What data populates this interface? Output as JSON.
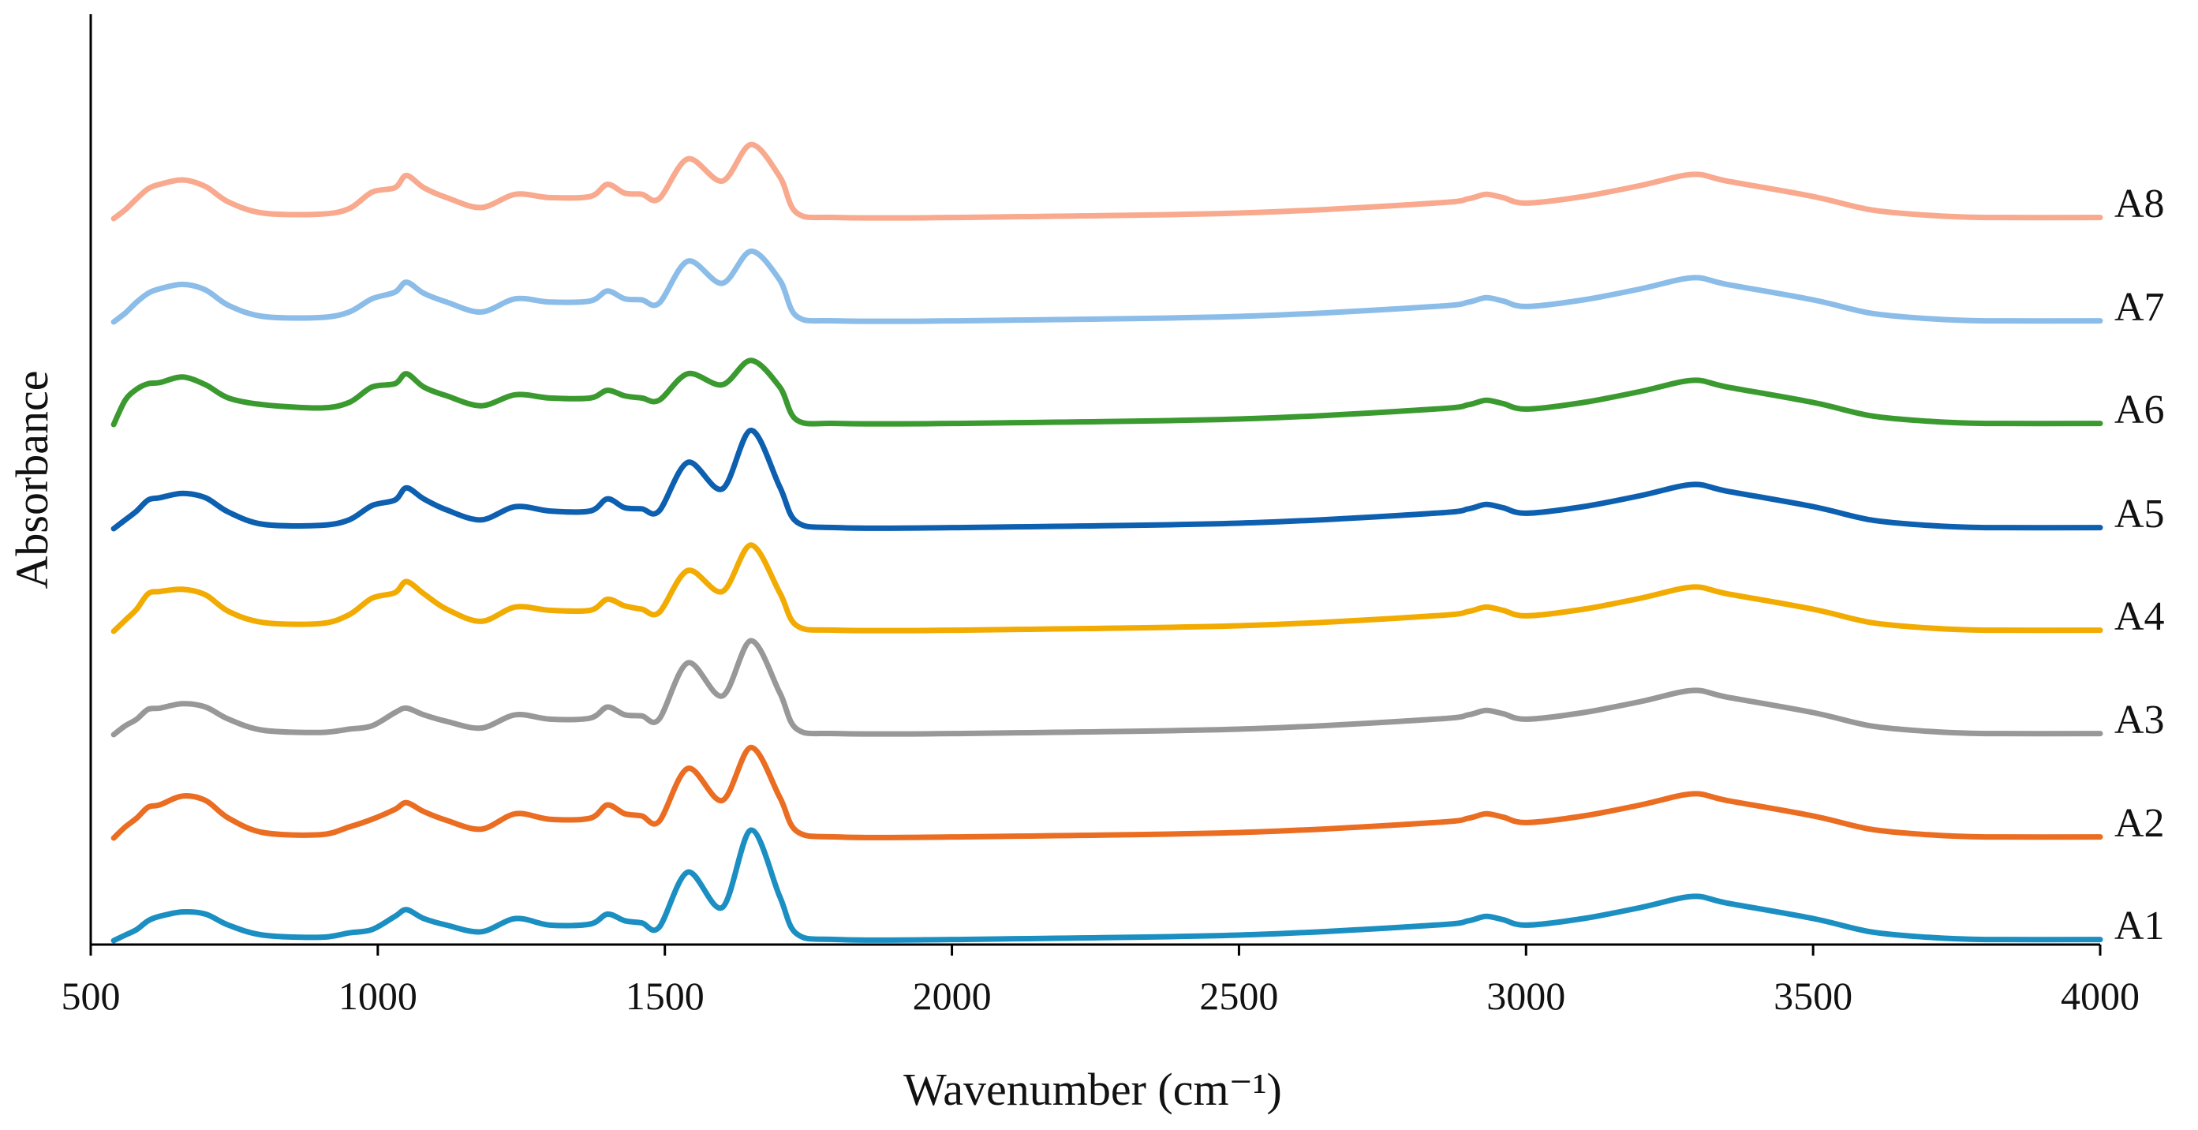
{
  "chart_data": {
    "type": "line",
    "title": "",
    "xlabel": "Wavenumber (cm⁻¹)",
    "ylabel": "Absorbance",
    "xlim": [
      500,
      4000
    ],
    "xticks": [
      500,
      1000,
      1500,
      2000,
      2500,
      3000,
      3500,
      4000
    ],
    "y_ticks_shown": false,
    "grid": false,
    "legend": "labels at right end of each trace",
    "note": "Offset (stacked) FTIR spectra; absorbance in arbitrary units relative to each trace's baseline.",
    "x": [
      540,
      560,
      580,
      600,
      620,
      660,
      700,
      740,
      800,
      900,
      950,
      990,
      1030,
      1050,
      1080,
      1120,
      1180,
      1240,
      1300,
      1370,
      1400,
      1430,
      1460,
      1490,
      1540,
      1600,
      1650,
      1700,
      1730,
      1800,
      2000,
      2500,
      2840,
      2900,
      2930,
      2960,
      3000,
      3100,
      3200,
      3290,
      3350,
      3500,
      3600,
      3700,
      3800,
      4000
    ],
    "series": [
      {
        "name": "A1",
        "color": "#1b8fc2",
        "values": [
          0.0,
          0.05,
          0.1,
          0.18,
          0.22,
          0.26,
          0.24,
          0.14,
          0.05,
          0.03,
          0.07,
          0.1,
          0.22,
          0.28,
          0.2,
          0.14,
          0.08,
          0.2,
          0.14,
          0.15,
          0.24,
          0.18,
          0.16,
          0.12,
          0.62,
          0.3,
          1.0,
          0.4,
          0.06,
          0.01,
          0.01,
          0.05,
          0.14,
          0.18,
          0.22,
          0.19,
          0.14,
          0.2,
          0.3,
          0.4,
          0.34,
          0.2,
          0.08,
          0.03,
          0.01,
          0.01
        ]
      },
      {
        "name": "A2",
        "color": "#ea6d22",
        "values": [
          0.0,
          0.1,
          0.18,
          0.28,
          0.3,
          0.38,
          0.34,
          0.18,
          0.05,
          0.03,
          0.1,
          0.17,
          0.26,
          0.32,
          0.24,
          0.16,
          0.08,
          0.22,
          0.17,
          0.18,
          0.3,
          0.22,
          0.2,
          0.15,
          0.63,
          0.34,
          0.82,
          0.37,
          0.06,
          0.01,
          0.01,
          0.05,
          0.14,
          0.18,
          0.22,
          0.19,
          0.14,
          0.2,
          0.3,
          0.4,
          0.34,
          0.2,
          0.08,
          0.03,
          0.01,
          0.01
        ]
      },
      {
        "name": "A3",
        "color": "#989898",
        "values": [
          0.0,
          0.08,
          0.14,
          0.23,
          0.24,
          0.28,
          0.25,
          0.14,
          0.04,
          0.02,
          0.05,
          0.08,
          0.2,
          0.24,
          0.18,
          0.12,
          0.06,
          0.18,
          0.14,
          0.15,
          0.25,
          0.18,
          0.17,
          0.14,
          0.65,
          0.35,
          0.85,
          0.38,
          0.05,
          0.01,
          0.01,
          0.05,
          0.14,
          0.18,
          0.22,
          0.19,
          0.14,
          0.2,
          0.3,
          0.4,
          0.34,
          0.2,
          0.08,
          0.03,
          0.01,
          0.01
        ]
      },
      {
        "name": "A4",
        "color": "#f2ab00",
        "values": [
          0.0,
          0.1,
          0.2,
          0.34,
          0.36,
          0.38,
          0.33,
          0.18,
          0.08,
          0.07,
          0.15,
          0.3,
          0.35,
          0.45,
          0.34,
          0.2,
          0.09,
          0.22,
          0.19,
          0.19,
          0.29,
          0.23,
          0.2,
          0.17,
          0.55,
          0.36,
          0.78,
          0.35,
          0.05,
          0.01,
          0.01,
          0.05,
          0.14,
          0.18,
          0.22,
          0.19,
          0.14,
          0.2,
          0.3,
          0.4,
          0.34,
          0.2,
          0.08,
          0.03,
          0.01,
          0.01
        ]
      },
      {
        "name": "A5",
        "color": "#0d5fb0",
        "values": [
          0.0,
          0.08,
          0.16,
          0.26,
          0.28,
          0.32,
          0.28,
          0.15,
          0.04,
          0.03,
          0.08,
          0.21,
          0.26,
          0.37,
          0.27,
          0.17,
          0.08,
          0.2,
          0.16,
          0.16,
          0.27,
          0.19,
          0.18,
          0.16,
          0.6,
          0.36,
          0.89,
          0.38,
          0.06,
          0.01,
          0.01,
          0.05,
          0.14,
          0.18,
          0.22,
          0.19,
          0.14,
          0.2,
          0.3,
          0.4,
          0.34,
          0.2,
          0.08,
          0.03,
          0.01,
          0.01
        ]
      },
      {
        "name": "A6",
        "color": "#3b9a2f",
        "values": [
          0.0,
          0.22,
          0.32,
          0.37,
          0.38,
          0.43,
          0.36,
          0.24,
          0.18,
          0.15,
          0.2,
          0.34,
          0.37,
          0.46,
          0.34,
          0.26,
          0.17,
          0.27,
          0.24,
          0.24,
          0.31,
          0.26,
          0.24,
          0.22,
          0.46,
          0.36,
          0.58,
          0.34,
          0.04,
          0.01,
          0.01,
          0.05,
          0.14,
          0.18,
          0.22,
          0.19,
          0.14,
          0.2,
          0.3,
          0.4,
          0.34,
          0.2,
          0.08,
          0.03,
          0.01,
          0.01
        ]
      },
      {
        "name": "A7",
        "color": "#8bbde8",
        "values": [
          0.0,
          0.08,
          0.18,
          0.26,
          0.3,
          0.34,
          0.29,
          0.15,
          0.05,
          0.04,
          0.09,
          0.21,
          0.27,
          0.36,
          0.26,
          0.18,
          0.09,
          0.21,
          0.18,
          0.19,
          0.28,
          0.21,
          0.2,
          0.17,
          0.55,
          0.35,
          0.64,
          0.38,
          0.05,
          0.01,
          0.01,
          0.05,
          0.14,
          0.18,
          0.22,
          0.19,
          0.14,
          0.2,
          0.3,
          0.4,
          0.34,
          0.2,
          0.08,
          0.03,
          0.01,
          0.01
        ]
      },
      {
        "name": "A8",
        "color": "#f8a98e",
        "values": [
          0.0,
          0.08,
          0.18,
          0.27,
          0.31,
          0.35,
          0.29,
          0.15,
          0.05,
          0.04,
          0.09,
          0.24,
          0.28,
          0.39,
          0.28,
          0.19,
          0.1,
          0.22,
          0.19,
          0.2,
          0.31,
          0.23,
          0.22,
          0.18,
          0.54,
          0.34,
          0.67,
          0.38,
          0.05,
          0.01,
          0.01,
          0.05,
          0.14,
          0.18,
          0.22,
          0.19,
          0.14,
          0.2,
          0.3,
          0.4,
          0.34,
          0.2,
          0.08,
          0.03,
          0.01,
          0.01
        ]
      }
    ]
  }
}
